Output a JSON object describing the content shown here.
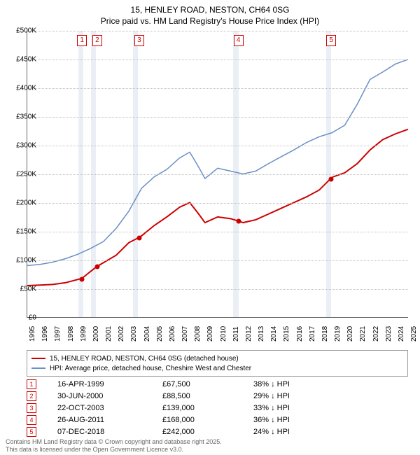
{
  "title_line1": "15, HENLEY ROAD, NESTON, CH64 0SG",
  "title_line2": "Price paid vs. HM Land Registry's House Price Index (HPI)",
  "chart": {
    "type": "line",
    "x": {
      "min": 1995,
      "max": 2025,
      "ticks": [
        1995,
        1996,
        1997,
        1998,
        1999,
        2000,
        2001,
        2002,
        2003,
        2004,
        2005,
        2006,
        2007,
        2008,
        2009,
        2010,
        2011,
        2012,
        2013,
        2014,
        2015,
        2016,
        2017,
        2018,
        2019,
        2020,
        2021,
        2022,
        2023,
        2024,
        2025
      ]
    },
    "y": {
      "min": 0,
      "max": 500000,
      "step": 50000,
      "labels": [
        "£0",
        "£50K",
        "£100K",
        "£150K",
        "£200K",
        "£250K",
        "£300K",
        "£350K",
        "£400K",
        "£450K",
        "£500K"
      ]
    },
    "background_color": "#ffffff",
    "grid_color": "#bfbfbf",
    "shaded_ranges": [
      [
        1999.0,
        1999.4
      ],
      [
        2000.0,
        2000.4
      ],
      [
        2003.3,
        2003.7
      ],
      [
        2011.2,
        2011.6
      ],
      [
        2018.5,
        2018.9
      ]
    ],
    "shaded_color": "#d8e2ee",
    "series": [
      {
        "name": "price_paid",
        "label": "15, HENLEY ROAD, NESTON, CH64 0SG (detached house)",
        "color": "#cc0000",
        "line_width": 2,
        "points": [
          [
            1995,
            55000
          ],
          [
            1996,
            56000
          ],
          [
            1997,
            57000
          ],
          [
            1998,
            60000
          ],
          [
            1999.3,
            67500
          ],
          [
            2000,
            80000
          ],
          [
            2000.5,
            88500
          ],
          [
            2001,
            95000
          ],
          [
            2002,
            108000
          ],
          [
            2003,
            130000
          ],
          [
            2003.8,
            139000
          ],
          [
            2004,
            142000
          ],
          [
            2005,
            160000
          ],
          [
            2006,
            175000
          ],
          [
            2007,
            192000
          ],
          [
            2007.8,
            200000
          ],
          [
            2008.5,
            180000
          ],
          [
            2009,
            165000
          ],
          [
            2010,
            175000
          ],
          [
            2011,
            172000
          ],
          [
            2011.6,
            168000
          ],
          [
            2012,
            165000
          ],
          [
            2013,
            170000
          ],
          [
            2014,
            180000
          ],
          [
            2015,
            190000
          ],
          [
            2016,
            200000
          ],
          [
            2017,
            210000
          ],
          [
            2018,
            222000
          ],
          [
            2018.9,
            242000
          ],
          [
            2019.1,
            245000
          ],
          [
            2020,
            252000
          ],
          [
            2021,
            268000
          ],
          [
            2022,
            292000
          ],
          [
            2023,
            310000
          ],
          [
            2024,
            320000
          ],
          [
            2025,
            328000
          ]
        ]
      },
      {
        "name": "hpi",
        "label": "HPI: Average price, detached house, Cheshire West and Chester",
        "color": "#6a8fc5",
        "line_width": 1.5,
        "points": [
          [
            1995,
            90000
          ],
          [
            1996,
            92000
          ],
          [
            1997,
            96000
          ],
          [
            1998,
            102000
          ],
          [
            1999,
            110000
          ],
          [
            2000,
            120000
          ],
          [
            2001,
            132000
          ],
          [
            2002,
            155000
          ],
          [
            2003,
            185000
          ],
          [
            2004,
            225000
          ],
          [
            2005,
            245000
          ],
          [
            2006,
            258000
          ],
          [
            2007,
            278000
          ],
          [
            2007.8,
            288000
          ],
          [
            2008.5,
            262000
          ],
          [
            2009,
            242000
          ],
          [
            2010,
            260000
          ],
          [
            2011,
            255000
          ],
          [
            2012,
            250000
          ],
          [
            2013,
            255000
          ],
          [
            2014,
            268000
          ],
          [
            2015,
            280000
          ],
          [
            2016,
            292000
          ],
          [
            2017,
            305000
          ],
          [
            2018,
            315000
          ],
          [
            2019,
            322000
          ],
          [
            2020,
            335000
          ],
          [
            2021,
            372000
          ],
          [
            2022,
            415000
          ],
          [
            2023,
            428000
          ],
          [
            2024,
            442000
          ],
          [
            2025,
            450000
          ]
        ]
      }
    ],
    "sale_markers": [
      {
        "n": "1",
        "x": 1999.3,
        "y": 67500
      },
      {
        "n": "2",
        "x": 2000.5,
        "y": 88500
      },
      {
        "n": "3",
        "x": 2003.8,
        "y": 139000
      },
      {
        "n": "4",
        "x": 2011.6,
        "y": 168000
      },
      {
        "n": "5",
        "x": 2018.9,
        "y": 242000
      }
    ]
  },
  "sales_table": [
    {
      "n": "1",
      "date": "16-APR-1999",
      "price": "£67,500",
      "diff": "38% ↓ HPI"
    },
    {
      "n": "2",
      "date": "30-JUN-2000",
      "price": "£88,500",
      "diff": "29% ↓ HPI"
    },
    {
      "n": "3",
      "date": "22-OCT-2003",
      "price": "£139,000",
      "diff": "33% ↓ HPI"
    },
    {
      "n": "4",
      "date": "26-AUG-2011",
      "price": "£168,000",
      "diff": "36% ↓ HPI"
    },
    {
      "n": "5",
      "date": "07-DEC-2018",
      "price": "£242,000",
      "diff": "24% ↓ HPI"
    }
  ],
  "footer_line1": "Contains HM Land Registry data © Crown copyright and database right 2025.",
  "footer_line2": "This data is licensed under the Open Government Licence v3.0."
}
